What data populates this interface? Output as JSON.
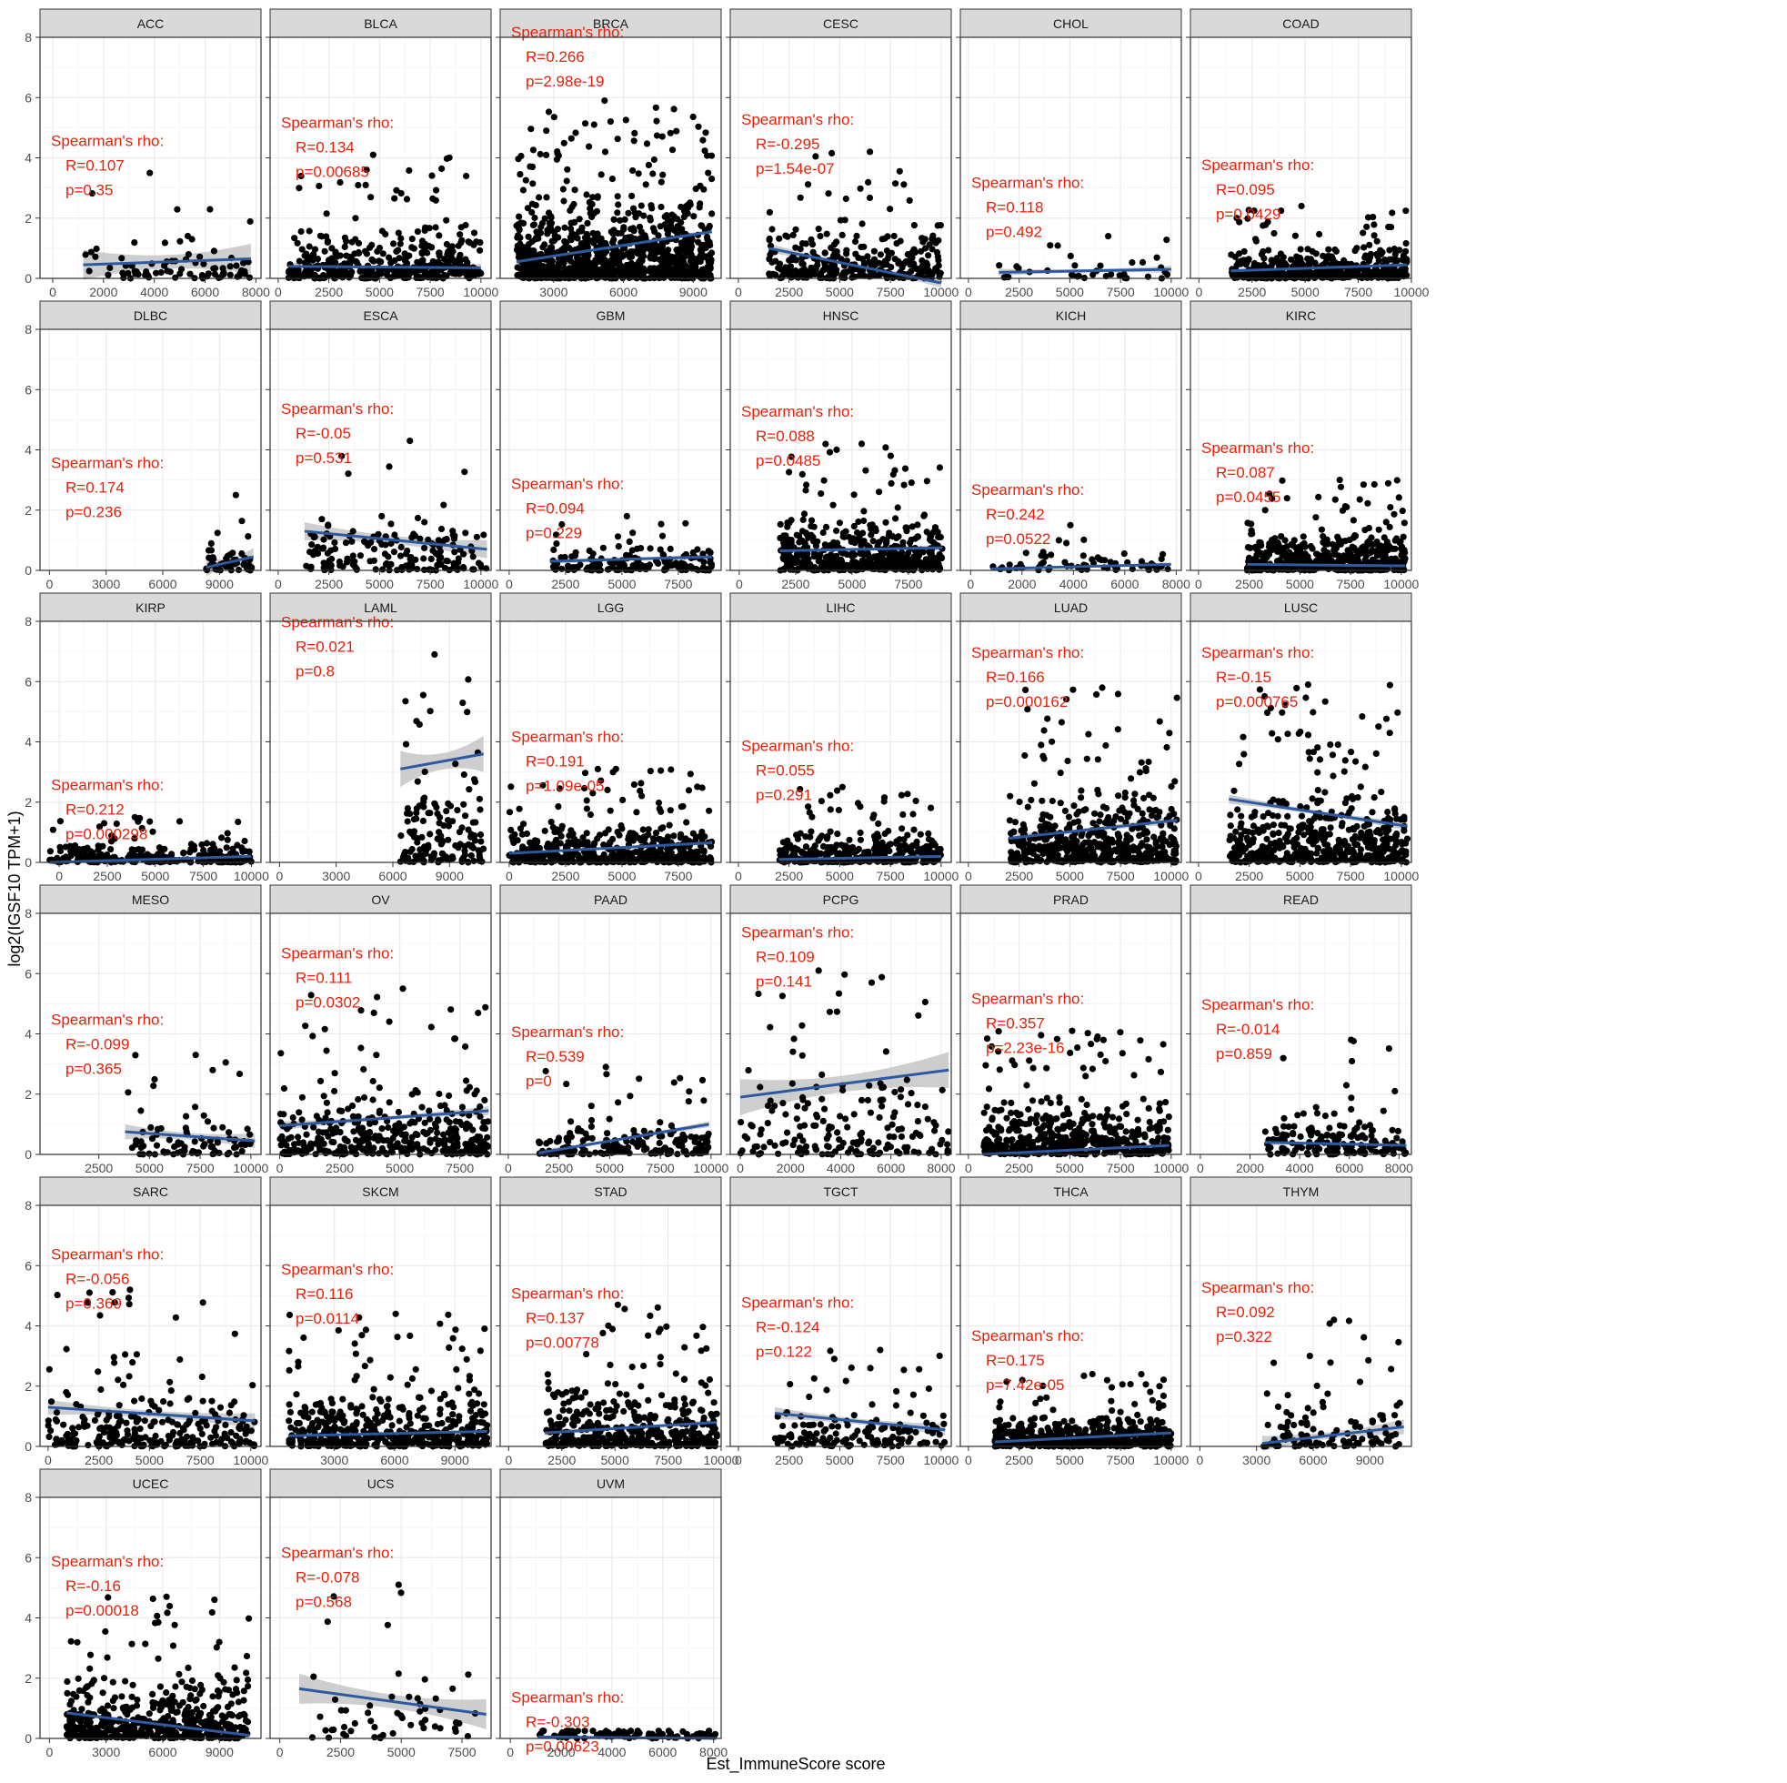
{
  "figure": {
    "xlabel": "Est_ImmuneScore score",
    "ylabel": "log2(IGSF10 TPM+1)",
    "stat_heading": "Spearman's rho:",
    "colors": {
      "points": "#000000",
      "fit_line": "#2c5aa0",
      "confidence_band": "#bdbdbd",
      "annotation": "#e8200a",
      "strip": "#d9d9d9",
      "grid": "#ebebeb",
      "panel_border": "#333333"
    }
  },
  "chart_data": {
    "type": "scatter",
    "facet_layout": {
      "columns": 6,
      "rows": 6
    },
    "y_axis": {
      "ylim": [
        0,
        8
      ],
      "ticks": [
        0,
        2,
        4,
        6,
        8
      ],
      "label": "log2(IGSF10 TPM+1)"
    },
    "x_axis_label": "Est_ImmuneScore score",
    "grid": true,
    "panels": [
      {
        "name": "ACC",
        "R": "R=0.107",
        "p": "p=0.35",
        "xlim": [
          -500,
          8200
        ],
        "xticks": [
          0,
          2000,
          4000,
          6000,
          8000
        ],
        "x_range": [
          1200,
          7800
        ],
        "y_max": 3.5,
        "density": 80,
        "fit": [
          0.45,
          0.65
        ],
        "ci": 0.5,
        "anno_y": 4.4
      },
      {
        "name": "BLCA",
        "R": "R=0.134",
        "p": "p=0.00685",
        "xlim": [
          -400,
          10500
        ],
        "xticks": [
          0,
          2500,
          5000,
          7500,
          10000
        ],
        "x_range": [
          500,
          10000
        ],
        "y_max": 4.1,
        "density": 400,
        "fit": [
          0.4,
          0.35
        ],
        "ci": 0.12,
        "anno_y": 5.0
      },
      {
        "name": "BRCA",
        "R": "R=0.266",
        "p": "p=2.98e-19",
        "xlim": [
          700,
          10200
        ],
        "xticks": [
          3000,
          6000,
          9000
        ],
        "x_range": [
          1400,
          9800
        ],
        "y_max": 5.9,
        "density": 1000,
        "fit": [
          0.55,
          1.55
        ],
        "ci": 0.08,
        "anno_y": 8.0
      },
      {
        "name": "CESC",
        "R": "R=-0.295",
        "p": "p=1.54e-07",
        "xlim": [
          -400,
          10500
        ],
        "xticks": [
          0,
          2500,
          5000,
          7500,
          10000
        ],
        "x_range": [
          1500,
          10000
        ],
        "y_max": 4.2,
        "density": 300,
        "fit": [
          1.0,
          -0.15
        ],
        "ci": 0.15,
        "anno_y": 5.1
      },
      {
        "name": "CHOL",
        "R": "R=0.118",
        "p": "p=0.492",
        "xlim": [
          -400,
          10500
        ],
        "xticks": [
          0,
          2500,
          5000,
          7500,
          10000
        ],
        "x_range": [
          1500,
          10000
        ],
        "y_max": 1.4,
        "density": 35,
        "fit": [
          0.2,
          0.3
        ],
        "ci": 0.12,
        "anno_y": 3.0
      },
      {
        "name": "COAD",
        "R": "R=0.095",
        "p": "p=0.0429",
        "xlim": [
          -400,
          10000
        ],
        "xticks": [
          0,
          2500,
          5000,
          7500,
          10000
        ],
        "x_range": [
          1500,
          9800
        ],
        "y_max": 2.4,
        "density": 450,
        "fit": [
          0.25,
          0.45
        ],
        "ci": 0.08,
        "anno_y": 3.6
      },
      {
        "name": "DLBC",
        "R": "R=0.174",
        "p": "p=0.236",
        "xlim": [
          -500,
          11200
        ],
        "xticks": [
          0,
          3000,
          6000,
          9000
        ],
        "x_range": [
          8300,
          10800
        ],
        "y_max": 2.5,
        "density": 45,
        "fit": [
          0.1,
          0.45
        ],
        "ci": 0.3,
        "anno_y": 3.4
      },
      {
        "name": "ESCA",
        "R": "R=-0.05",
        "p": "p=0.531",
        "xlim": [
          -400,
          10500
        ],
        "xticks": [
          0,
          2500,
          5000,
          7500,
          10000
        ],
        "x_range": [
          1300,
          10300
        ],
        "y_max": 4.3,
        "density": 170,
        "fit": [
          1.3,
          0.7
        ],
        "ci": 0.3,
        "anno_y": 5.2
      },
      {
        "name": "GBM",
        "R": "R=0.094",
        "p": "p=0.229",
        "xlim": [
          -400,
          9400
        ],
        "xticks": [
          0,
          2500,
          5000,
          7500
        ],
        "x_range": [
          1800,
          9000
        ],
        "y_max": 1.8,
        "density": 160,
        "fit": [
          0.3,
          0.45
        ],
        "ci": 0.1,
        "anno_y": 2.7
      },
      {
        "name": "HNSC",
        "R": "R=0.088",
        "p": "p=0.0485",
        "xlim": [
          -400,
          9400
        ],
        "xticks": [
          0,
          2500,
          5000,
          7500
        ],
        "x_range": [
          1800,
          9000
        ],
        "y_max": 4.2,
        "density": 500,
        "fit": [
          0.65,
          0.75
        ],
        "ci": 0.1,
        "anno_y": 5.1
      },
      {
        "name": "KICH",
        "R": "R=0.242",
        "p": "p=0.0522",
        "xlim": [
          -400,
          8200
        ],
        "xticks": [
          0,
          2000,
          4000,
          6000,
          8000
        ],
        "x_range": [
          800,
          7800
        ],
        "y_max": 1.5,
        "density": 65,
        "fit": [
          0.05,
          0.2
        ],
        "ci": 0.06,
        "anno_y": 2.5
      },
      {
        "name": "KIRC",
        "R": "R=0.087",
        "p": "p=0.0455",
        "xlim": [
          -400,
          10500
        ],
        "xticks": [
          0,
          2500,
          5000,
          7500,
          10000
        ],
        "x_range": [
          2400,
          10200
        ],
        "y_max": 3.0,
        "density": 500,
        "fit": [
          0.2,
          0.15
        ],
        "ci": 0.05,
        "anno_y": 3.9
      },
      {
        "name": "KIRP",
        "R": "R=0.212",
        "p": "p=0.000298",
        "xlim": [
          -1000,
          10500
        ],
        "xticks": [
          0,
          2500,
          5000,
          7500,
          10000
        ],
        "x_range": [
          -500,
          10000
        ],
        "y_max": 1.5,
        "density": 280,
        "fit": [
          0.0,
          0.2
        ],
        "ci": 0.05,
        "anno_y": 2.4
      },
      {
        "name": "LAML",
        "R": "R=0.021",
        "p": "p=0.8",
        "xlim": [
          -500,
          11200
        ],
        "xticks": [
          0,
          3000,
          6000,
          9000
        ],
        "x_range": [
          6400,
          10800
        ],
        "y_max": 6.9,
        "density": 150,
        "fit": [
          3.1,
          3.6
        ],
        "ci": 0.6,
        "anno_y": 7.8
      },
      {
        "name": "LGG",
        "R": "R=0.191",
        "p": "p=1.09e-05",
        "xlim": [
          -400,
          9400
        ],
        "xticks": [
          0,
          2500,
          5000,
          7500
        ],
        "x_range": [
          0,
          9000
        ],
        "y_max": 3.1,
        "density": 500,
        "fit": [
          0.3,
          0.65
        ],
        "ci": 0.05,
        "anno_y": 4.0
      },
      {
        "name": "LIHC",
        "R": "R=0.055",
        "p": "p=0.291",
        "xlim": [
          -400,
          10500
        ],
        "xticks": [
          0,
          2500,
          5000,
          7500,
          10000
        ],
        "x_range": [
          2000,
          10000
        ],
        "y_max": 2.5,
        "density": 360,
        "fit": [
          0.1,
          0.2
        ],
        "ci": 0.05,
        "anno_y": 3.7
      },
      {
        "name": "LUAD",
        "R": "R=0.166",
        "p": "p=0.000162",
        "xlim": [
          -400,
          10500
        ],
        "xticks": [
          0,
          2500,
          5000,
          7500,
          10000
        ],
        "x_range": [
          2000,
          10300
        ],
        "y_max": 5.8,
        "density": 500,
        "fit": [
          0.8,
          1.4
        ],
        "ci": 0.15,
        "anno_y": 6.8
      },
      {
        "name": "LUSC",
        "R": "R=-0.15",
        "p": "p=0.000765",
        "xlim": [
          -400,
          10500
        ],
        "xticks": [
          0,
          2500,
          5000,
          7500,
          10000
        ],
        "x_range": [
          1500,
          10300
        ],
        "y_max": 5.9,
        "density": 500,
        "fit": [
          2.1,
          1.2
        ],
        "ci": 0.15,
        "anno_y": 6.8
      },
      {
        "name": "MESO",
        "R": "R=-0.099",
        "p": "p=0.365",
        "xlim": [
          -400,
          10500
        ],
        "xticks": [
          2500,
          5000,
          7500,
          10000
        ],
        "x_range": [
          3800,
          10200
        ],
        "y_max": 3.3,
        "density": 85,
        "fit": [
          0.75,
          0.45
        ],
        "ci": 0.25,
        "anno_y": 4.3
      },
      {
        "name": "OV",
        "R": "R=0.111",
        "p": "p=0.0302",
        "xlim": [
          -400,
          8800
        ],
        "xticks": [
          0,
          2500,
          5000,
          7500
        ],
        "x_range": [
          0,
          8700
        ],
        "y_max": 5.5,
        "density": 380,
        "fit": [
          0.95,
          1.45
        ],
        "ci": 0.15,
        "anno_y": 6.5
      },
      {
        "name": "PAAD",
        "R": "R=0.539",
        "p": "p=0",
        "xlim": [
          -400,
          10500
        ],
        "xticks": [
          0,
          2500,
          5000,
          7500,
          10000
        ],
        "x_range": [
          1500,
          9900
        ],
        "y_max": 2.9,
        "density": 180,
        "fit": [
          0.05,
          1.0
        ],
        "ci": 0.1,
        "anno_y": 3.9
      },
      {
        "name": "PCPG",
        "R": "R=0.109",
        "p": "p=0.141",
        "xlim": [
          -400,
          8400
        ],
        "xticks": [
          0,
          2000,
          4000,
          6000,
          8000
        ],
        "x_range": [
          0,
          8300
        ],
        "y_max": 6.1,
        "density": 180,
        "fit": [
          1.9,
          2.8
        ],
        "ci": 0.6,
        "anno_y": 7.2
      },
      {
        "name": "PRAD",
        "R": "R=0.357",
        "p": "p=2.23e-16",
        "xlim": [
          -400,
          10500
        ],
        "xticks": [
          0,
          2500,
          5000,
          7500,
          10000
        ],
        "x_range": [
          700,
          9900
        ],
        "y_max": 4.1,
        "density": 500,
        "fit": [
          0.0,
          0.3
        ],
        "ci": 0.05,
        "anno_y": 5.0
      },
      {
        "name": "READ",
        "R": "R=-0.014",
        "p": "p=0.859",
        "xlim": [
          -400,
          8500
        ],
        "xticks": [
          0,
          2000,
          4000,
          6000,
          8000
        ],
        "x_range": [
          2600,
          8300
        ],
        "y_max": 3.8,
        "density": 160,
        "fit": [
          0.4,
          0.3
        ],
        "ci": 0.1,
        "anno_y": 4.8
      },
      {
        "name": "SARC",
        "R": "R=-0.056",
        "p": "p=0.369",
        "xlim": [
          -400,
          10500
        ],
        "xticks": [
          0,
          2500,
          5000,
          7500,
          10000
        ],
        "x_range": [
          0,
          10200
        ],
        "y_max": 5.2,
        "density": 260,
        "fit": [
          1.3,
          0.85
        ],
        "ci": 0.25,
        "anno_y": 6.2
      },
      {
        "name": "SKCM",
        "R": "R=0.116",
        "p": "p=0.0114",
        "xlim": [
          -200,
          10800
        ],
        "xticks": [
          3000,
          6000,
          9000
        ],
        "x_range": [
          700,
          10600
        ],
        "y_max": 4.4,
        "density": 470,
        "fit": [
          0.35,
          0.5
        ],
        "ci": 0.08,
        "anno_y": 5.7
      },
      {
        "name": "STAD",
        "R": "R=0.137",
        "p": "p=0.00778",
        "xlim": [
          -400,
          10000
        ],
        "xticks": [
          0,
          2500,
          5000,
          7500,
          10000
        ],
        "x_range": [
          1700,
          9800
        ],
        "y_max": 4.7,
        "density": 400,
        "fit": [
          0.45,
          0.8
        ],
        "ci": 0.1,
        "anno_y": 4.9
      },
      {
        "name": "TGCT",
        "R": "R=-0.124",
        "p": "p=0.122",
        "xlim": [
          -400,
          10500
        ],
        "xticks": [
          0,
          2500,
          5000,
          7500,
          10000
        ],
        "x_range": [
          1800,
          10200
        ],
        "y_max": 3.2,
        "density": 150,
        "fit": [
          1.1,
          0.55
        ],
        "ci": 0.2,
        "anno_y": 4.6
      },
      {
        "name": "THCA",
        "R": "R=0.175",
        "p": "p=7.42e-05",
        "xlim": [
          -400,
          10500
        ],
        "xticks": [
          0,
          2500,
          5000,
          7500,
          10000
        ],
        "x_range": [
          1300,
          10000
        ],
        "y_max": 2.4,
        "density": 500,
        "fit": [
          0.15,
          0.45
        ],
        "ci": 0.06,
        "anno_y": 3.5
      },
      {
        "name": "THYM",
        "R": "R=0.092",
        "p": "p=0.322",
        "xlim": [
          -500,
          11200
        ],
        "xticks": [
          0,
          3000,
          6000,
          9000
        ],
        "x_range": [
          3300,
          10800
        ],
        "y_max": 4.2,
        "density": 110,
        "fit": [
          0.1,
          0.65
        ],
        "ci": 0.25,
        "anno_y": 5.1
      },
      {
        "name": "UCEC",
        "R": "R=-0.16",
        "p": "p=0.00018",
        "xlim": [
          -500,
          11200
        ],
        "xticks": [
          0,
          3000,
          6000,
          9000
        ],
        "x_range": [
          900,
          10600
        ],
        "y_max": 4.7,
        "density": 500,
        "fit": [
          0.85,
          0.1
        ],
        "ci": 0.1,
        "anno_y": 5.7
      },
      {
        "name": "UCS",
        "R": "R=-0.078",
        "p": "p=0.568",
        "xlim": [
          -400,
          8700
        ],
        "xticks": [
          0,
          2500,
          5000,
          7500
        ],
        "x_range": [
          800,
          8500
        ],
        "y_max": 5.1,
        "density": 55,
        "fit": [
          1.65,
          0.8
        ],
        "ci": 0.5,
        "anno_y": 6.0
      },
      {
        "name": "UVM",
        "R": "R=-0.303",
        "p": "p=0.00623",
        "xlim": [
          -400,
          8300
        ],
        "xticks": [
          0,
          2000,
          4000,
          6000,
          8000
        ],
        "x_range": [
          1100,
          8100
        ],
        "y_max": 0.25,
        "density": 80,
        "fit": [
          0.05,
          0.0
        ],
        "ci": 0.03,
        "anno_y": 1.2
      }
    ]
  }
}
